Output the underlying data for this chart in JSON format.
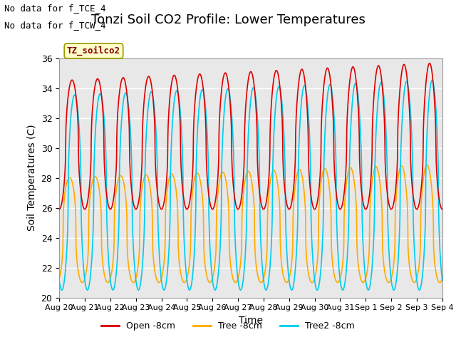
{
  "title": "Tonzi Soil CO2 Profile: Lower Temperatures",
  "ylabel": "Soil Temperatures (C)",
  "xlabel": "Time",
  "annotation_lines": [
    "No data for f_TCE_4",
    "No data for f_TCW_4"
  ],
  "legend_label": "TZ_soilco2",
  "ylim": [
    20,
    36
  ],
  "yticks": [
    20,
    22,
    24,
    26,
    28,
    30,
    32,
    34,
    36
  ],
  "xtick_labels": [
    "Aug 20",
    "Aug 21",
    "Aug 22",
    "Aug 23",
    "Aug 24",
    "Aug 25",
    "Aug 26",
    "Aug 27",
    "Aug 28",
    "Aug 29",
    "Aug 30",
    "Aug 31",
    "Sep 1",
    "Sep 2",
    "Sep 3",
    "Sep 4"
  ],
  "series_colors": {
    "open": "#dd0000",
    "tree": "#ffaa00",
    "tree2": "#00ccee"
  },
  "legend_items": [
    {
      "label": "Open -8cm",
      "color": "#dd0000"
    },
    {
      "label": "Tree -8cm",
      "color": "#ffaa00"
    },
    {
      "label": "Tree2 -8cm",
      "color": "#00ccee"
    }
  ],
  "background_color": "#e8e8e8",
  "grid_color": "#ffffff",
  "title_fontsize": 13,
  "annotation_fontsize": 9,
  "axis_label_fontsize": 10,
  "tick_fontsize": 9,
  "linewidth": 1.2
}
